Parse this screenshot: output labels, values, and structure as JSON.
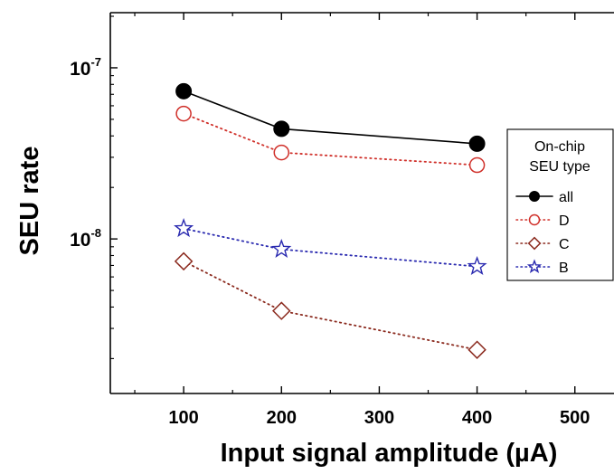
{
  "chart_data": {
    "type": "line",
    "xlabel": "Input signal amplitude (µA)",
    "ylabel": "SEU rate",
    "x_scale": "linear",
    "y_scale": "log",
    "xlim": [
      25,
      540
    ],
    "ylim": [
      1.25e-09,
      2.1e-07
    ],
    "x_ticks": [
      100,
      200,
      300,
      400,
      500
    ],
    "x_tick_labels": [
      "100",
      "200",
      "300",
      "400",
      "500"
    ],
    "y_ticks": [
      1e-08,
      1e-07
    ],
    "y_tick_labels": [
      {
        "base": "10",
        "exp": "-8"
      },
      {
        "base": "10",
        "exp": "-7"
      }
    ],
    "grid": false,
    "legend": {
      "placement": "right",
      "title_lines": [
        "On-chip",
        "SEU type"
      ]
    },
    "series": [
      {
        "name": "all",
        "x": [
          100,
          200,
          400
        ],
        "y": [
          7.3e-08,
          4.4e-08,
          3.6e-08
        ],
        "color": "#000000",
        "marker": "filled-circle",
        "line": "solid"
      },
      {
        "name": "D",
        "x": [
          100,
          200,
          400
        ],
        "y": [
          5.4e-08,
          3.2e-08,
          2.7e-08
        ],
        "color": "#d0302a",
        "marker": "open-circle",
        "line": "dotted"
      },
      {
        "name": "C",
        "x": [
          100,
          200,
          400
        ],
        "y": [
          7.4e-09,
          3.8e-09,
          2.25e-09
        ],
        "color": "#8b2a1e",
        "marker": "open-diamond",
        "line": "dotted"
      },
      {
        "name": "B",
        "x": [
          100,
          200,
          400
        ],
        "y": [
          1.15e-08,
          8.7e-09,
          6.9e-09
        ],
        "color": "#2a2ab0",
        "marker": "open-star",
        "line": "dotted"
      }
    ]
  }
}
